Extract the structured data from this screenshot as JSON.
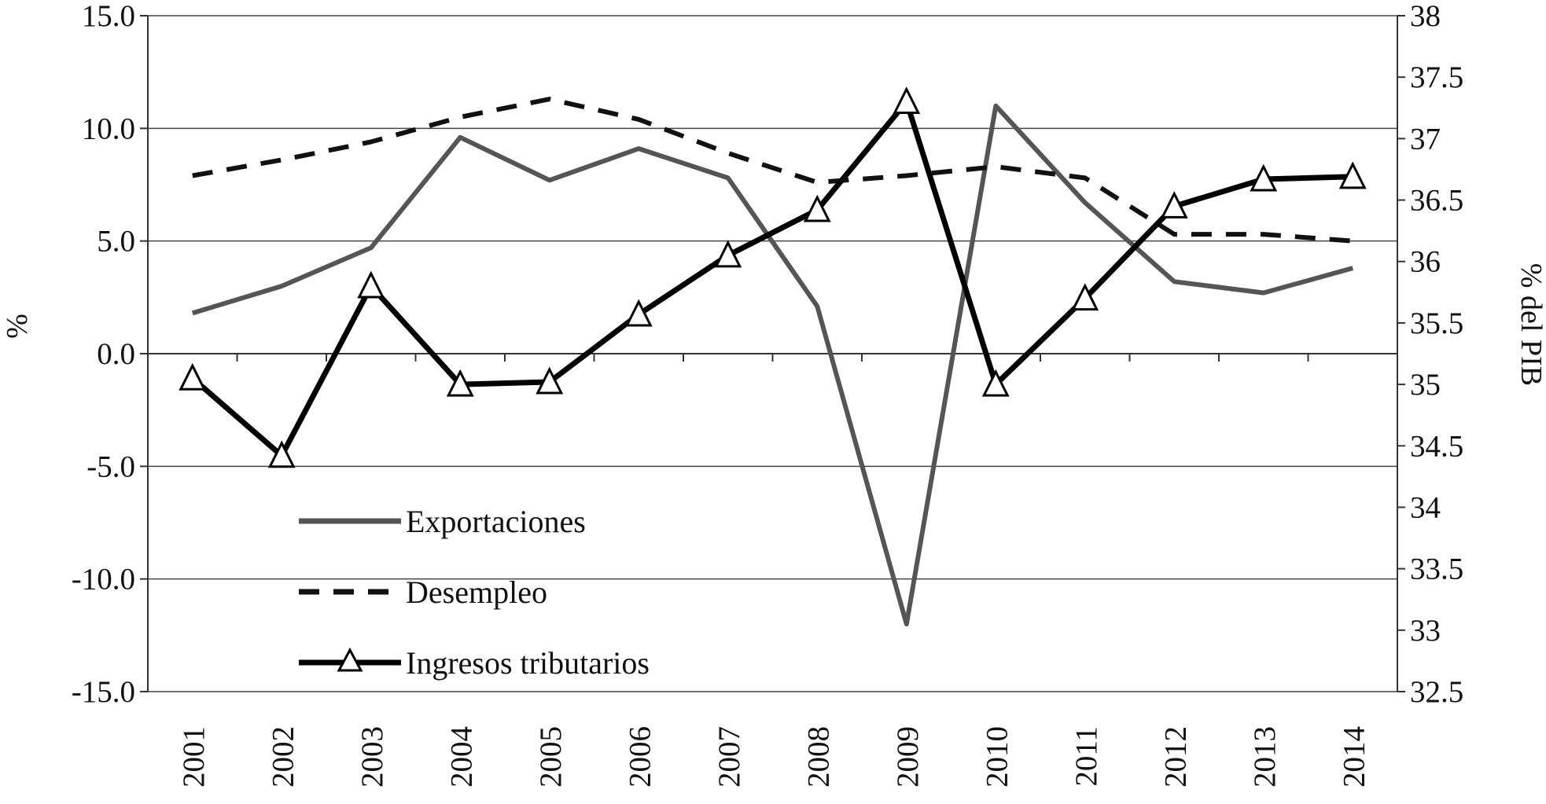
{
  "chart_data": {
    "type": "line",
    "title": "",
    "xlabel": "",
    "ylabel": "%",
    "y2label": "% del PIB",
    "categories": [
      "2001",
      "2002",
      "2003",
      "2004",
      "2005",
      "2006",
      "2007",
      "2008",
      "2009",
      "2010",
      "2011",
      "2012",
      "2013",
      "2014"
    ],
    "ylim": [
      -15,
      15
    ],
    "y2lim": [
      32.5,
      38
    ],
    "yticks": [
      "15.0",
      "10.0",
      "5.0",
      "0.0",
      "-5.0",
      "-10.0",
      "-15.0"
    ],
    "y2ticks": [
      "38",
      "37.5",
      "37",
      "36.5",
      "36",
      "35.5",
      "35",
      "34.5",
      "34",
      "33.5",
      "33",
      "32.5"
    ],
    "grid": true,
    "legend_position": "lower-left",
    "series": [
      {
        "name": "Exportaciones",
        "axis": "left",
        "style": "solid",
        "color": "#555555",
        "values": [
          1.8,
          3.0,
          4.7,
          9.6,
          7.7,
          9.1,
          7.8,
          2.1,
          -12.0,
          11.0,
          6.7,
          3.2,
          2.7,
          3.8
        ]
      },
      {
        "name": "Desempleo",
        "axis": "left",
        "style": "dashed",
        "color": "#111111",
        "values": [
          7.9,
          8.6,
          9.4,
          10.5,
          11.3,
          10.4,
          8.9,
          7.6,
          7.9,
          8.3,
          7.8,
          5.3,
          5.3,
          5.0
        ]
      },
      {
        "name": "Ingresos tributarios",
        "axis": "right",
        "style": "solid-triangle",
        "color": "#000000",
        "values": [
          35.05,
          34.42,
          35.8,
          35.0,
          35.02,
          35.57,
          36.05,
          36.42,
          37.3,
          35.0,
          35.7,
          36.45,
          36.67,
          36.69
        ]
      }
    ]
  }
}
